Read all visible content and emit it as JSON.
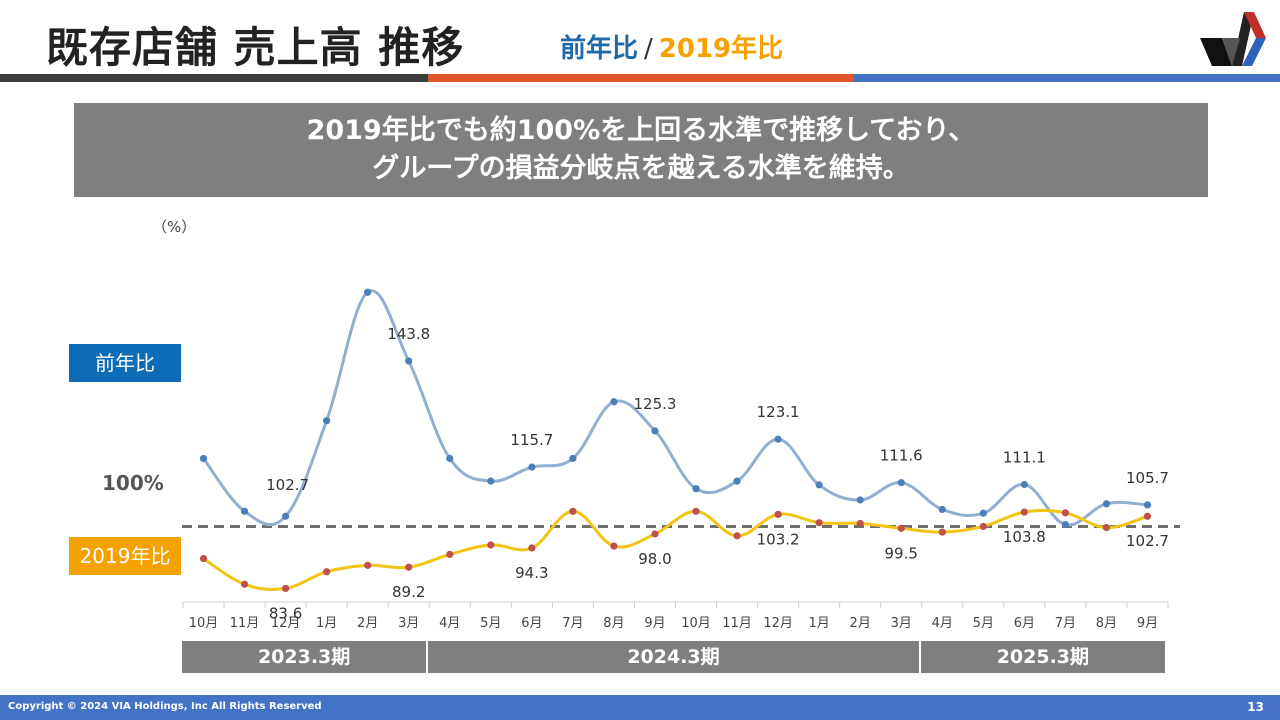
{
  "header": {
    "title": "既存店舗 売上高 推移",
    "subtitle_yoy": "前年比",
    "subtitle_sep": "/",
    "subtitle_2019": "2019年比"
  },
  "banner": {
    "line1": "2019年比でも約100%を上回る水準で推移しており、",
    "line2": "グループの損益分岐点を越える水準を維持。"
  },
  "colors": {
    "yoy_line": "#92afd2",
    "yoy_marker": "#4a7fb8",
    "vs2019_line": "#f2c414",
    "vs2019_marker": "#c0504d",
    "reference": "#6e6e6e",
    "stripe_dark": "#3d3d3d",
    "stripe_orange": "#e0552c",
    "stripe_blue": "#4472c4"
  },
  "legend": {
    "yoy": "前年比",
    "vs2019": "2019年比",
    "reference": "100%"
  },
  "periods": [
    {
      "label": "2023.3期",
      "from": 0,
      "to": 5
    },
    {
      "label": "2024.3期",
      "from": 6,
      "to": 17
    },
    {
      "label": "2025.3期",
      "from": 18,
      "to": 23
    }
  ],
  "chart_data": {
    "type": "line",
    "unit_label": "（%）",
    "categories": [
      "10月",
      "11月",
      "12月",
      "1月",
      "2月",
      "3月",
      "4月",
      "5月",
      "6月",
      "7月",
      "8月",
      "9月",
      "10月",
      "11月",
      "12月",
      "1月",
      "2月",
      "3月",
      "4月",
      "5月",
      "6月",
      "7月",
      "8月",
      "9月"
    ],
    "series": [
      {
        "name": "前年比",
        "values": [
          118,
          104,
          102.7,
          128,
          162,
          143.8,
          118,
          112,
          115.7,
          118,
          133,
          125.3,
          110,
          112,
          123.1,
          111,
          107,
          111.6,
          104.5,
          103.5,
          111.1,
          100.5,
          106,
          105.7
        ],
        "labels": [
          null,
          null,
          "102.7",
          null,
          null,
          "143.8",
          null,
          null,
          "115.7",
          null,
          null,
          "125.3",
          null,
          null,
          "123.1",
          null,
          null,
          "111.6",
          null,
          null,
          "111.1",
          null,
          null,
          "105.7"
        ]
      },
      {
        "name": "2019年比",
        "values": [
          91.5,
          84.7,
          83.6,
          88,
          89.7,
          89.2,
          92.6,
          95.1,
          94.3,
          104,
          94.8,
          98.0,
          104,
          97.5,
          103.2,
          101,
          100.8,
          99.5,
          98.5,
          100,
          103.8,
          103.6,
          99.7,
          102.7
        ],
        "labels": [
          null,
          null,
          "83.6",
          null,
          null,
          "89.2",
          null,
          null,
          "94.3",
          null,
          null,
          "98.0",
          null,
          null,
          "103.2",
          null,
          null,
          "99.5",
          null,
          null,
          "103.8",
          null,
          null,
          "102.7"
        ]
      }
    ],
    "reference_line": 100,
    "ylim": [
      80,
      170
    ],
    "grid": false,
    "legend_position": "left"
  },
  "footer": {
    "copyright": "Copyright © 2024 VIA Holdings, Inc All Rights Reserved",
    "page": "13"
  }
}
